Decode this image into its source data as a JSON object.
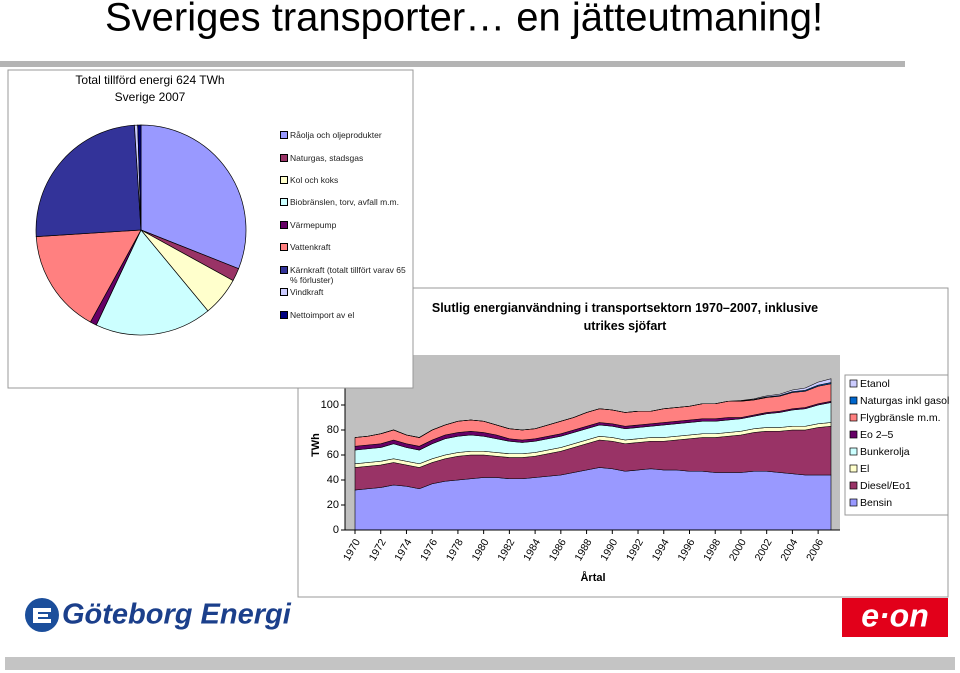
{
  "title": "Sveriges transporter… en jätteutmaning!",
  "logos": {
    "left": "Göteborg Energi",
    "right": "e·on"
  },
  "chart_data": [
    {
      "type": "pie",
      "title": "Total tillförd energi 624 TWh",
      "subtitle": "Sverige 2007",
      "categories": [
        "Råolja och oljeprodukter",
        "Naturgas, stadsgas",
        "Kol och koks",
        "Biobränslen, torv, avfall m.m.",
        "Värmepump",
        "Vattenkraft",
        "Kärnkraft (totalt tillfört varav 65 % förluster)",
        "Vindkraft",
        "Nettoimport av el"
      ],
      "values": [
        31,
        2,
        6,
        18,
        1,
        16,
        25,
        0.5,
        0.5
      ],
      "colors": [
        "#9999FF",
        "#993366",
        "#FFFFCC",
        "#CCFFFF",
        "#660066",
        "#FF8080",
        "#333399",
        "#CCCCFF",
        "#000080"
      ]
    },
    {
      "type": "area",
      "stacked": true,
      "title": "Slutlig energianvändning i transportsektorn 1970–2007, inklusive utrikes sjöfart",
      "x_label": "Årtal",
      "y_label": "TWh",
      "legend": "right",
      "x": [
        1970,
        1971,
        1972,
        1973,
        1974,
        1975,
        1976,
        1977,
        1978,
        1979,
        1980,
        1981,
        1982,
        1983,
        1984,
        1985,
        1986,
        1987,
        1988,
        1989,
        1990,
        1991,
        1992,
        1993,
        1994,
        1995,
        1996,
        1997,
        1998,
        1999,
        2000,
        2001,
        2002,
        2003,
        2004,
        2005,
        2006,
        2007
      ],
      "xlim": [
        1970,
        2007
      ],
      "xticks": [
        1970,
        1972,
        1974,
        1976,
        1978,
        1980,
        1982,
        1984,
        1986,
        1988,
        1990,
        1992,
        1994,
        1996,
        1998,
        2000,
        2002,
        2004,
        2006
      ],
      "ylim": [
        0,
        140
      ],
      "yticks": [
        0,
        20,
        40,
        60,
        80,
        100
      ],
      "series": [
        {
          "name": "Bensin",
          "color": "#9999FF",
          "values": [
            32,
            33,
            34,
            36,
            35,
            33,
            37,
            39,
            40,
            41,
            42,
            42,
            41,
            41,
            42,
            43,
            44,
            46,
            48,
            50,
            49,
            47,
            48,
            49,
            48,
            48,
            47,
            47,
            46,
            46,
            46,
            47,
            47,
            46,
            45,
            44,
            44,
            44
          ]
        },
        {
          "name": "Diesel/Eo1",
          "color": "#993366",
          "values": [
            18,
            18,
            18,
            18,
            17,
            17,
            17,
            18,
            19,
            19,
            18,
            17,
            17,
            17,
            17,
            18,
            19,
            20,
            21,
            22,
            22,
            22,
            22,
            22,
            23,
            24,
            26,
            27,
            28,
            29,
            30,
            31,
            32,
            33,
            35,
            36,
            38,
            39
          ]
        },
        {
          "name": "El",
          "color": "#FFFFCC",
          "values": [
            3,
            3,
            3,
            3,
            3,
            3,
            3,
            3,
            3,
            3,
            3,
            3,
            3,
            3,
            3,
            3,
            3,
            3,
            3,
            3,
            3,
            3,
            3,
            3,
            3,
            3,
            3,
            3,
            3,
            3,
            3,
            3,
            3,
            3,
            3,
            3,
            3,
            3
          ]
        },
        {
          "name": "Bunkerolja",
          "color": "#CCFFFF",
          "values": [
            11,
            11,
            11,
            12,
            11,
            11,
            12,
            13,
            13,
            13,
            12,
            11,
            10,
            9,
            9,
            9,
            9,
            9,
            9,
            9,
            9,
            9,
            9,
            9,
            10,
            10,
            10,
            10,
            10,
            10,
            10,
            10,
            11,
            12,
            13,
            14,
            15,
            16
          ]
        },
        {
          "name": "Eo 2–5",
          "color": "#660066",
          "values": [
            3,
            3,
            3,
            3,
            3,
            3,
            3,
            3,
            3,
            3,
            3,
            3,
            2,
            2,
            2,
            2,
            2,
            2,
            2,
            2,
            2,
            2,
            2,
            2,
            2,
            2,
            2,
            2,
            2,
            2,
            1,
            1,
            1,
            1,
            1,
            1,
            1,
            1
          ]
        },
        {
          "name": "Flygbränsle m.m.",
          "color": "#FF8080",
          "values": [
            7,
            7,
            8,
            8,
            7,
            7,
            8,
            8,
            9,
            9,
            9,
            8,
            8,
            8,
            8,
            9,
            10,
            10,
            11,
            11,
            11,
            11,
            11,
            10,
            11,
            11,
            11,
            12,
            12,
            13,
            13,
            12,
            12,
            12,
            13,
            13,
            14,
            14
          ]
        },
        {
          "name": "Naturgas inkl gasol",
          "color": "#0066CC",
          "values": [
            0,
            0,
            0,
            0,
            0,
            0,
            0,
            0,
            0,
            0,
            0,
            0,
            0,
            0,
            0,
            0,
            0,
            0,
            0,
            0,
            0,
            0,
            0,
            0,
            0,
            0,
            0,
            0,
            0,
            0,
            0.3,
            0.4,
            0.5,
            0.6,
            0.7,
            0.8,
            0.9,
            1
          ]
        },
        {
          "name": "Etanol",
          "color": "#CCCCFF",
          "values": [
            0,
            0,
            0,
            0,
            0,
            0,
            0,
            0,
            0,
            0,
            0,
            0,
            0,
            0,
            0,
            0,
            0,
            0,
            0,
            0,
            0,
            0,
            0,
            0,
            0,
            0,
            0,
            0,
            0,
            0,
            0.3,
            0.5,
            0.8,
            1,
            1.3,
            1.8,
            2.4,
            3
          ]
        }
      ]
    }
  ]
}
